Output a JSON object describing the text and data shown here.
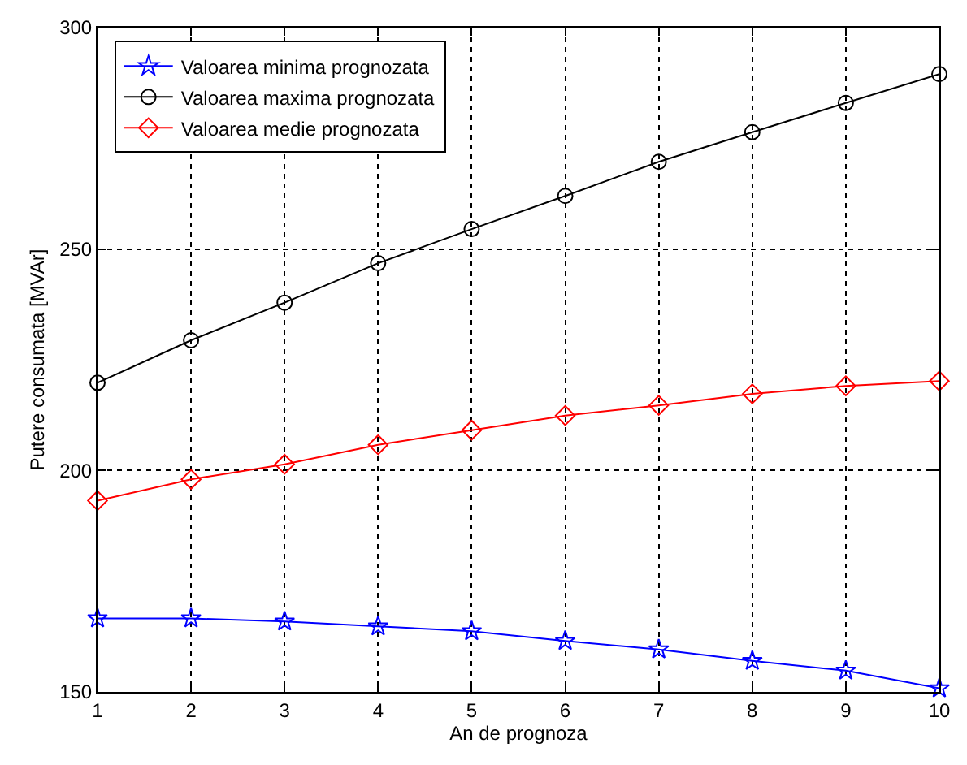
{
  "chart_data": {
    "type": "line",
    "xlabel": "An de prognoza",
    "ylabel": "Putere consumata [MVAr]",
    "x": [
      1,
      2,
      3,
      4,
      5,
      6,
      7,
      8,
      9,
      10
    ],
    "xlim": [
      1,
      10
    ],
    "xticks": [
      1,
      2,
      3,
      4,
      5,
      6,
      7,
      8,
      9,
      10
    ],
    "ylim": [
      150,
      300
    ],
    "yticks": [
      150,
      200,
      250,
      300
    ],
    "grid": true,
    "legend": "top left",
    "line_style": "solid",
    "series": [
      {
        "name": "Valoarea minima prognozata",
        "color": "#0000ff",
        "marker": "star",
        "values": [
          166.6,
          166.6,
          165.9,
          164.8,
          163.7,
          161.5,
          159.6,
          157.0,
          154.8,
          150.8
        ]
      },
      {
        "name": "Valoarea maxima prognozata",
        "color": "#000000",
        "marker": "circle",
        "values": [
          219.8,
          229.4,
          237.9,
          246.8,
          254.5,
          262.0,
          269.7,
          276.4,
          283.0,
          289.5
        ]
      },
      {
        "name": "Valoarea medie prognozata",
        "color": "#ff0000",
        "marker": "diamond",
        "values": [
          193.2,
          198.0,
          201.4,
          205.8,
          209.1,
          212.4,
          214.7,
          217.3,
          219.1,
          220.2
        ]
      }
    ]
  }
}
